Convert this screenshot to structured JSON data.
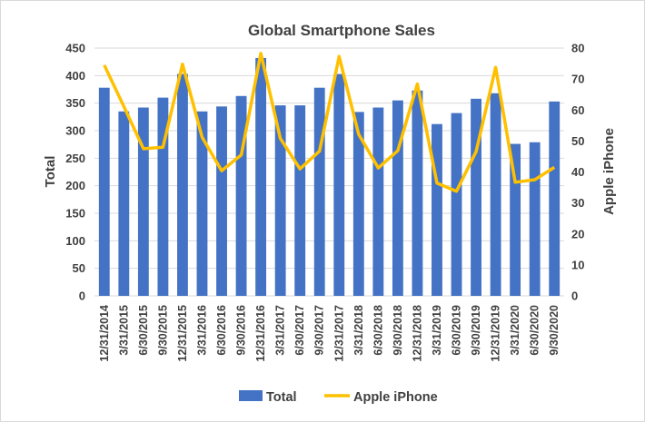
{
  "chart_data": {
    "type": "bar+line",
    "title": "Global Smartphone Sales",
    "categories": [
      "12/31/2014",
      "3/31/2015",
      "6/30/2015",
      "9/30/2015",
      "12/31/2015",
      "3/31/2016",
      "6/30/2016",
      "9/30/2016",
      "12/31/2016",
      "3/31/2017",
      "6/30/2017",
      "9/30/2017",
      "12/31/2017",
      "3/31/2018",
      "6/30/2018",
      "9/30/2018",
      "12/31/2018",
      "3/31/2019",
      "6/30/2019",
      "9/30/2019",
      "12/31/2019",
      "3/31/2020",
      "6/30/2020",
      "9/30/2020"
    ],
    "series": [
      {
        "name": "Total",
        "type": "bar",
        "axis": "left",
        "color": "#4472c4",
        "values": [
          378,
          335,
          342,
          360,
          403,
          335,
          344,
          363,
          432,
          346,
          346,
          378,
          403,
          334,
          342,
          355,
          373,
          312,
          332,
          358,
          368,
          276,
          279,
          353
        ]
      },
      {
        "name": "Apple iPhone",
        "type": "line",
        "axis": "right",
        "color": "#ffc000",
        "values": [
          74.5,
          61.2,
          47.5,
          48.0,
          74.8,
          51.2,
          40.4,
          45.5,
          78.3,
          50.8,
          41.0,
          46.7,
          77.3,
          52.2,
          41.3,
          46.9,
          68.4,
          36.4,
          33.8,
          46.6,
          73.8,
          36.7,
          37.5,
          41.5
        ]
      }
    ],
    "ylabel": "Total",
    "y2label": "Apple iPhone",
    "ylim": [
      0,
      450
    ],
    "yticks": [
      "0",
      "50",
      "100",
      "150",
      "200",
      "250",
      "300",
      "350",
      "400",
      "450"
    ],
    "y2lim": [
      0,
      80
    ],
    "y2ticks": [
      "0",
      "10",
      "20",
      "30",
      "40",
      "50",
      "60",
      "70",
      "80"
    ],
    "grid": true,
    "legend": "bottom"
  }
}
